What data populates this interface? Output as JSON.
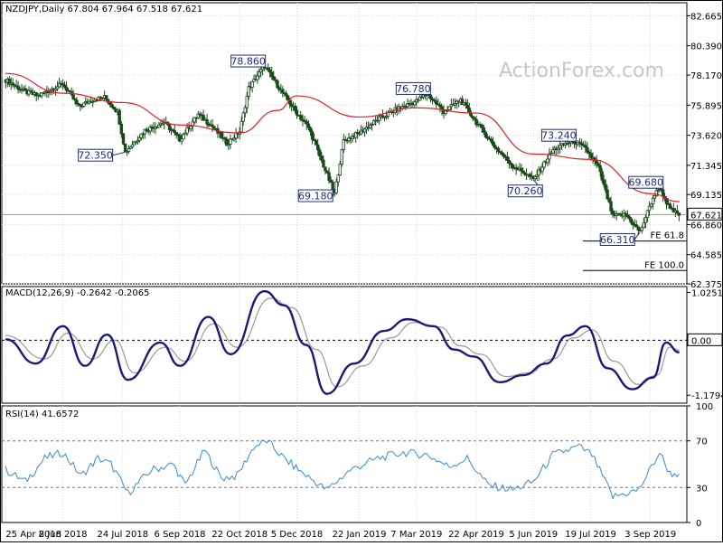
{
  "chart_data": [
    {
      "type": "candlestick",
      "panel": "price",
      "title": "NZDJPY,Daily  67.804 67.964 67.518 67.621",
      "watermark": "ActionForex.com",
      "ylim": [
        62.375,
        83.65
      ],
      "y_ticks": [
        "82.665",
        "80.390",
        "78.170",
        "75.895",
        "73.620",
        "71.345",
        "69.135",
        "66.860",
        "64.585",
        "62.375"
      ],
      "last_price": "67.621",
      "series": [
        {
          "name": "",
          "kind": "price",
          "points": [
            {
              "x": "2018-04-25",
              "y": 77.8
            },
            {
              "x": "2018-05-10",
              "y": 76.9
            },
            {
              "x": "2018-05-20",
              "y": 76.6
            },
            {
              "x": "2018-06-01",
              "y": 77.2
            },
            {
              "x": "2018-06-08",
              "y": 77.5
            },
            {
              "x": "2018-06-20",
              "y": 75.8
            },
            {
              "x": "2018-07-01",
              "y": 76.3
            },
            {
              "x": "2018-07-10",
              "y": 76.5
            },
            {
              "x": "2018-07-20",
              "y": 75.4
            },
            {
              "x": "2018-07-26",
              "y": 72.35
            },
            {
              "x": "2018-08-10",
              "y": 74.0
            },
            {
              "x": "2018-08-25",
              "y": 74.6
            },
            {
              "x": "2018-09-06",
              "y": 73.3
            },
            {
              "x": "2018-09-20",
              "y": 75.2
            },
            {
              "x": "2018-10-01",
              "y": 74.3
            },
            {
              "x": "2018-10-12",
              "y": 73.0
            },
            {
              "x": "2018-10-22",
              "y": 73.9
            },
            {
              "x": "2018-10-29",
              "y": 77.2
            },
            {
              "x": "2018-11-10",
              "y": 78.86
            },
            {
              "x": "2018-11-20",
              "y": 77.4
            },
            {
              "x": "2018-12-05",
              "y": 75.3
            },
            {
              "x": "2018-12-14",
              "y": 74.2
            },
            {
              "x": "2019-01-03",
              "y": 69.18
            },
            {
              "x": "2019-01-10",
              "y": 73.2
            },
            {
              "x": "2019-01-22",
              "y": 73.8
            },
            {
              "x": "2019-02-05",
              "y": 74.8
            },
            {
              "x": "2019-02-20",
              "y": 75.6
            },
            {
              "x": "2019-03-07",
              "y": 76.2
            },
            {
              "x": "2019-03-15",
              "y": 76.78
            },
            {
              "x": "2019-03-28",
              "y": 75.4
            },
            {
              "x": "2019-04-10",
              "y": 76.3
            },
            {
              "x": "2019-04-22",
              "y": 74.6
            },
            {
              "x": "2019-05-05",
              "y": 72.9
            },
            {
              "x": "2019-05-20",
              "y": 71.3
            },
            {
              "x": "2019-06-01",
              "y": 70.6
            },
            {
              "x": "2019-06-05",
              "y": 70.26
            },
            {
              "x": "2019-06-20",
              "y": 72.5
            },
            {
              "x": "2019-07-05",
              "y": 73.24
            },
            {
              "x": "2019-07-15",
              "y": 72.6
            },
            {
              "x": "2019-07-25",
              "y": 71.2
            },
            {
              "x": "2019-08-05",
              "y": 67.5
            },
            {
              "x": "2019-08-15",
              "y": 67.6
            },
            {
              "x": "2019-08-26",
              "y": 66.31
            },
            {
              "x": "2019-09-05",
              "y": 68.9
            },
            {
              "x": "2019-09-10",
              "y": 69.68
            },
            {
              "x": "2019-09-18",
              "y": 68.0
            },
            {
              "x": "2019-09-25",
              "y": 67.621
            }
          ]
        },
        {
          "name": "",
          "kind": "moving-average",
          "color": "#e0202a",
          "points": [
            {
              "x": "2018-04-25",
              "y": 78.3
            },
            {
              "x": "2018-06-08",
              "y": 76.8
            },
            {
              "x": "2018-07-24",
              "y": 76.1
            },
            {
              "x": "2018-09-06",
              "y": 74.4
            },
            {
              "x": "2018-10-22",
              "y": 73.8
            },
            {
              "x": "2018-11-20",
              "y": 75.5
            },
            {
              "x": "2018-12-05",
              "y": 76.6
            },
            {
              "x": "2019-01-22",
              "y": 75.0
            },
            {
              "x": "2019-03-07",
              "y": 75.7
            },
            {
              "x": "2019-04-22",
              "y": 75.3
            },
            {
              "x": "2019-06-05",
              "y": 72.2
            },
            {
              "x": "2019-07-19",
              "y": 71.8
            },
            {
              "x": "2019-09-03",
              "y": 69.2
            },
            {
              "x": "2019-09-25",
              "y": 68.6
            }
          ]
        }
      ],
      "annotations": [
        {
          "label": "78.860",
          "x": "2018-11-08",
          "y": 78.86
        },
        {
          "label": "72.350",
          "x": "2018-07-26",
          "y": 72.35
        },
        {
          "label": "69.180",
          "x": "2019-01-03",
          "y": 69.18
        },
        {
          "label": "76.780",
          "x": "2019-03-15",
          "y": 76.78
        },
        {
          "label": "70.260",
          "x": "2019-06-05",
          "y": 70.26
        },
        {
          "label": "73.240",
          "x": "2019-07-05",
          "y": 73.24
        },
        {
          "label": "69.680",
          "x": "2019-09-10",
          "y": 69.68
        },
        {
          "label": "66.310",
          "x": "2019-08-26",
          "y": 66.31
        }
      ],
      "levels": [
        {
          "label": "FE 61.8",
          "y": 65.62
        },
        {
          "label": "FE 100.0",
          "y": 63.38
        }
      ]
    },
    {
      "type": "line",
      "panel": "macd",
      "title": "MACD(12,26,9) -0.2642 -0.2065",
      "ylim": [
        -1.35,
        1.15
      ],
      "y_ticks": [
        "1.0251",
        "0.00",
        "-1.1794"
      ],
      "series": [
        {
          "name": "",
          "kind": "macd",
          "color": "#1a1a7e",
          "points": [
            {
              "x": "2018-04-25",
              "y": 0.02
            },
            {
              "x": "2018-05-18",
              "y": -0.5
            },
            {
              "x": "2018-06-08",
              "y": 0.3
            },
            {
              "x": "2018-06-25",
              "y": -0.55
            },
            {
              "x": "2018-07-12",
              "y": 0.12
            },
            {
              "x": "2018-07-28",
              "y": -0.85
            },
            {
              "x": "2018-08-22",
              "y": -0.05
            },
            {
              "x": "2018-09-06",
              "y": -0.55
            },
            {
              "x": "2018-09-28",
              "y": 0.5
            },
            {
              "x": "2018-10-15",
              "y": -0.3
            },
            {
              "x": "2018-11-10",
              "y": 1.05
            },
            {
              "x": "2018-11-25",
              "y": 0.75
            },
            {
              "x": "2018-12-12",
              "y": -0.1
            },
            {
              "x": "2018-12-28",
              "y": -1.15
            },
            {
              "x": "2019-01-18",
              "y": -0.5
            },
            {
              "x": "2019-02-10",
              "y": 0.2
            },
            {
              "x": "2019-02-28",
              "y": 0.45
            },
            {
              "x": "2019-03-20",
              "y": 0.3
            },
            {
              "x": "2019-04-05",
              "y": -0.2
            },
            {
              "x": "2019-04-20",
              "y": -0.35
            },
            {
              "x": "2019-05-10",
              "y": -0.9
            },
            {
              "x": "2019-05-28",
              "y": -0.75
            },
            {
              "x": "2019-06-15",
              "y": -0.5
            },
            {
              "x": "2019-07-01",
              "y": 0.1
            },
            {
              "x": "2019-07-15",
              "y": 0.3
            },
            {
              "x": "2019-08-01",
              "y": -0.6
            },
            {
              "x": "2019-08-20",
              "y": -1.05
            },
            {
              "x": "2019-09-05",
              "y": -0.8
            },
            {
              "x": "2019-09-15",
              "y": -0.05
            },
            {
              "x": "2019-09-25",
              "y": -0.26
            }
          ]
        },
        {
          "name": "",
          "kind": "signal",
          "color": "#9a9a9a",
          "points": [
            {
              "x": "2018-04-25",
              "y": 0.1
            },
            {
              "x": "2018-05-25",
              "y": -0.4
            },
            {
              "x": "2018-06-12",
              "y": 0.15
            },
            {
              "x": "2018-07-01",
              "y": -0.4
            },
            {
              "x": "2018-07-18",
              "y": 0.0
            },
            {
              "x": "2018-08-02",
              "y": -0.7
            },
            {
              "x": "2018-08-26",
              "y": -0.15
            },
            {
              "x": "2018-09-10",
              "y": -0.45
            },
            {
              "x": "2018-10-02",
              "y": 0.35
            },
            {
              "x": "2018-10-20",
              "y": -0.15
            },
            {
              "x": "2018-11-15",
              "y": 0.9
            },
            {
              "x": "2018-12-01",
              "y": 0.7
            },
            {
              "x": "2018-12-20",
              "y": -0.2
            },
            {
              "x": "2019-01-05",
              "y": -1.0
            },
            {
              "x": "2019-01-25",
              "y": -0.55
            },
            {
              "x": "2019-02-15",
              "y": 0.05
            },
            {
              "x": "2019-03-05",
              "y": 0.38
            },
            {
              "x": "2019-03-25",
              "y": 0.28
            },
            {
              "x": "2019-04-10",
              "y": -0.12
            },
            {
              "x": "2019-04-25",
              "y": -0.3
            },
            {
              "x": "2019-05-15",
              "y": -0.78
            },
            {
              "x": "2019-06-01",
              "y": -0.7
            },
            {
              "x": "2019-06-20",
              "y": -0.4
            },
            {
              "x": "2019-07-06",
              "y": 0.05
            },
            {
              "x": "2019-07-20",
              "y": 0.22
            },
            {
              "x": "2019-08-06",
              "y": -0.45
            },
            {
              "x": "2019-08-25",
              "y": -0.95
            },
            {
              "x": "2019-09-08",
              "y": -0.75
            },
            {
              "x": "2019-09-18",
              "y": -0.15
            },
            {
              "x": "2019-09-25",
              "y": -0.21
            }
          ]
        }
      ]
    },
    {
      "type": "line",
      "panel": "rsi",
      "title": "RSI(14) 41.6572",
      "ylim": [
        0,
        100
      ],
      "y_ticks": [
        "100",
        "70",
        "30",
        "0"
      ],
      "levels": [
        70,
        30
      ],
      "series": [
        {
          "name": "",
          "color": "#3a8ad4",
          "points": [
            {
              "x": "2018-04-25",
              "y": 45
            },
            {
              "x": "2018-05-10",
              "y": 35
            },
            {
              "x": "2018-05-25",
              "y": 55
            },
            {
              "x": "2018-06-08",
              "y": 60
            },
            {
              "x": "2018-06-22",
              "y": 40
            },
            {
              "x": "2018-07-05",
              "y": 55
            },
            {
              "x": "2018-07-15",
              "y": 50
            },
            {
              "x": "2018-07-28",
              "y": 25
            },
            {
              "x": "2018-08-15",
              "y": 45
            },
            {
              "x": "2018-09-01",
              "y": 50
            },
            {
              "x": "2018-09-10",
              "y": 32
            },
            {
              "x": "2018-09-25",
              "y": 62
            },
            {
              "x": "2018-10-08",
              "y": 38
            },
            {
              "x": "2018-10-20",
              "y": 40
            },
            {
              "x": "2018-11-02",
              "y": 65
            },
            {
              "x": "2018-11-12",
              "y": 70
            },
            {
              "x": "2018-11-25",
              "y": 55
            },
            {
              "x": "2018-12-10",
              "y": 42
            },
            {
              "x": "2018-12-28",
              "y": 28
            },
            {
              "x": "2019-01-15",
              "y": 45
            },
            {
              "x": "2019-02-05",
              "y": 55
            },
            {
              "x": "2019-02-25",
              "y": 60
            },
            {
              "x": "2019-03-15",
              "y": 58
            },
            {
              "x": "2019-04-01",
              "y": 48
            },
            {
              "x": "2019-04-15",
              "y": 55
            },
            {
              "x": "2019-05-01",
              "y": 32
            },
            {
              "x": "2019-05-20",
              "y": 28
            },
            {
              "x": "2019-06-05",
              "y": 35
            },
            {
              "x": "2019-06-20",
              "y": 58
            },
            {
              "x": "2019-07-10",
              "y": 65
            },
            {
              "x": "2019-07-20",
              "y": 58
            },
            {
              "x": "2019-08-05",
              "y": 22
            },
            {
              "x": "2019-08-25",
              "y": 28
            },
            {
              "x": "2019-09-10",
              "y": 60
            },
            {
              "x": "2019-09-18",
              "y": 42
            },
            {
              "x": "2019-09-25",
              "y": 41.66
            }
          ]
        }
      ]
    }
  ],
  "x_axis": {
    "tick_labels": [
      {
        "label": "25 Apr 2018",
        "x": "2018-04-25"
      },
      {
        "label": "8 Jun 2018",
        "x": "2018-06-08"
      },
      {
        "label": "24 Jul 2018",
        "x": "2018-07-24"
      },
      {
        "label": "6 Sep 2018",
        "x": "2018-09-06"
      },
      {
        "label": "22 Oct 2018",
        "x": "2018-10-22"
      },
      {
        "label": "5 Dec 2018",
        "x": "2018-12-05"
      },
      {
        "label": "22 Jan 2019",
        "x": "2019-01-22"
      },
      {
        "label": "7 Mar 2019",
        "x": "2019-03-07"
      },
      {
        "label": "22 Apr 2019",
        "x": "2019-04-22"
      },
      {
        "label": "5 Jun 2019",
        "x": "2019-06-05"
      },
      {
        "label": "19 Jul 2019",
        "x": "2019-07-19"
      },
      {
        "label": "3 Sep 2019",
        "x": "2019-09-03"
      }
    ],
    "range": [
      "2018-04-22",
      "2019-10-01"
    ]
  },
  "colors": {
    "price": "#1a4a1a",
    "ma": "#e0202a",
    "macd": "#1a1a7e",
    "signal": "#9a9a9a",
    "rsi": "#3a8ad4",
    "label": "#1f2a7a"
  }
}
